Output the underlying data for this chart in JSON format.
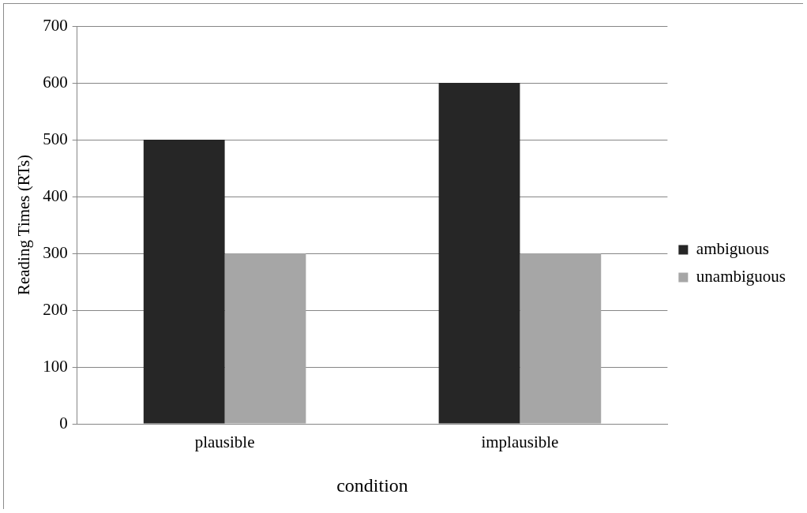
{
  "chart_data": {
    "type": "bar",
    "xlabel": "condition",
    "ylabel": "Reading Times (RTs)",
    "categories": [
      "plausible",
      "implausible"
    ],
    "series": [
      {
        "name": "ambiguous",
        "color": "#262626",
        "values": [
          500,
          600
        ]
      },
      {
        "name": "unambiguous",
        "color": "#a6a6a6",
        "values": [
          300,
          300
        ]
      }
    ],
    "ylim": [
      0,
      700
    ],
    "yticks": [
      0,
      100,
      200,
      300,
      400,
      500,
      600,
      700
    ],
    "grid": "y",
    "legend": "right"
  }
}
